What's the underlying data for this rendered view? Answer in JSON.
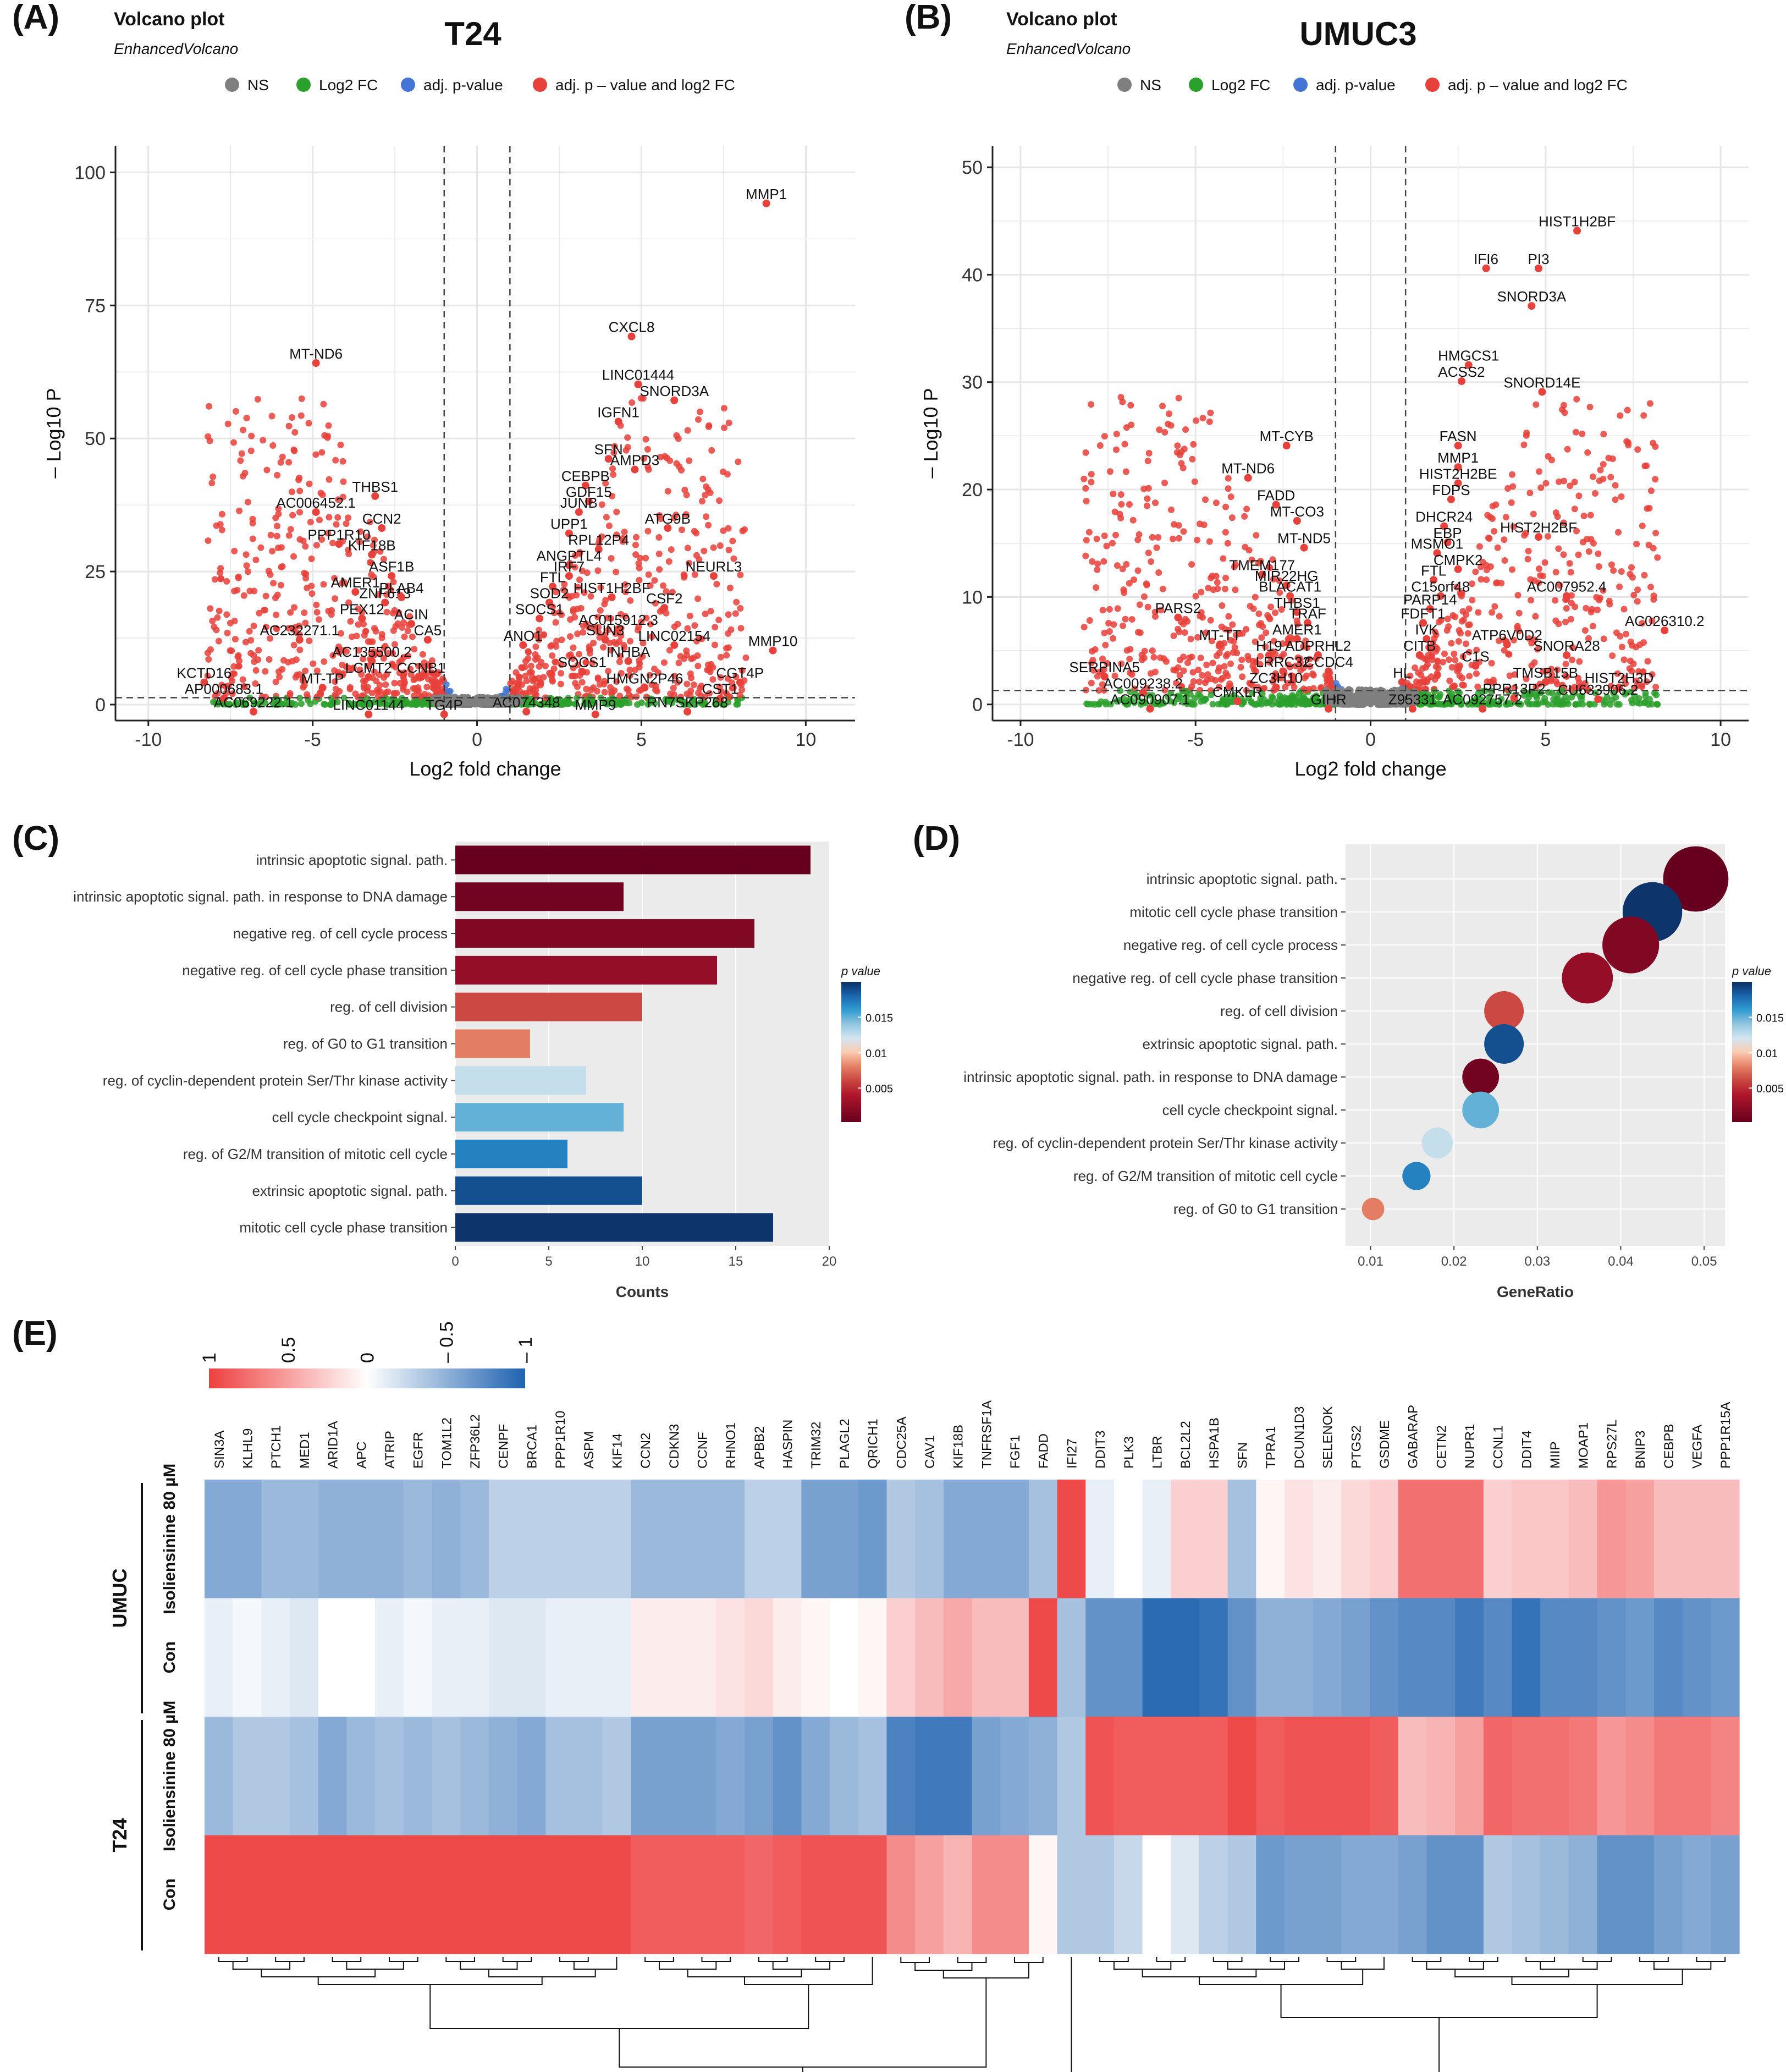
{
  "colors": {
    "ns": "#7f7f7f",
    "log2fc": "#2ca02c",
    "padj": "#4575d4",
    "both": "#e8403a",
    "panel": "#ebebeb",
    "grid": "#ffffff"
  },
  "chart_data": [
    {
      "id": "A",
      "type": "scatter",
      "panel_label": "(A)",
      "title": "Volcano plot",
      "subtitle": "EnhancedVolcano",
      "header": "T24",
      "legend": [
        "NS",
        "Log2 FC",
        "adj. p-value",
        "adj. p – value and log2 FC"
      ],
      "xlabel": "Log2 fold change",
      "ylabel": "– Log10 P",
      "xlim": [
        -11,
        11.5
      ],
      "ylim": [
        -3,
        105
      ],
      "xticks": [
        -10,
        -5,
        0,
        5,
        10
      ],
      "yticks": [
        0,
        25,
        50,
        75,
        100
      ],
      "fc_cutoff": [
        -1,
        1
      ],
      "p_cutoff": 1.3,
      "labels": [
        {
          "t": "MMP1",
          "x": 8.8,
          "y": 95
        },
        {
          "t": "CXCL8",
          "x": 4.7,
          "y": 70
        },
        {
          "t": "MT-ND6",
          "x": -4.9,
          "y": 65
        },
        {
          "t": "LINC01444",
          "x": 4.9,
          "y": 61
        },
        {
          "t": "SNORD3A",
          "x": 6.0,
          "y": 58
        },
        {
          "t": "IGFN1",
          "x": 4.3,
          "y": 54
        },
        {
          "t": "SFN",
          "x": 4.0,
          "y": 47
        },
        {
          "t": "AMPD3",
          "x": 4.8,
          "y": 45
        },
        {
          "t": "CEBPB",
          "x": 3.3,
          "y": 42
        },
        {
          "t": "THBS1",
          "x": -3.1,
          "y": 40
        },
        {
          "t": "GDF15",
          "x": 3.4,
          "y": 39
        },
        {
          "t": "AC006452.1",
          "x": -4.9,
          "y": 37
        },
        {
          "t": "JUNB",
          "x": 3.1,
          "y": 37
        },
        {
          "t": "ATG9B",
          "x": 5.8,
          "y": 34
        },
        {
          "t": "CCN2",
          "x": -2.9,
          "y": 34
        },
        {
          "t": "UPP1",
          "x": 2.8,
          "y": 33
        },
        {
          "t": "PPP1R10",
          "x": -4.2,
          "y": 31
        },
        {
          "t": "RPL12P4",
          "x": 3.7,
          "y": 30
        },
        {
          "t": "KIF18B",
          "x": -3.2,
          "y": 29
        },
        {
          "t": "ANGPTL4",
          "x": 2.8,
          "y": 27
        },
        {
          "t": "NEURL3",
          "x": 7.2,
          "y": 25
        },
        {
          "t": "ASF1B",
          "x": -2.6,
          "y": 25
        },
        {
          "t": "IRF7",
          "x": 2.8,
          "y": 25
        },
        {
          "t": "AMER1",
          "x": -3.7,
          "y": 22
        },
        {
          "t": "FTL",
          "x": 2.3,
          "y": 23
        },
        {
          "t": "HIST1H2BF",
          "x": 4.1,
          "y": 21
        },
        {
          "t": "CSF2",
          "x": 5.7,
          "y": 19
        },
        {
          "t": "ZNF613",
          "x": -2.8,
          "y": 20
        },
        {
          "t": "PLAB4",
          "x": -2.3,
          "y": 21
        },
        {
          "t": "SOD2",
          "x": 2.2,
          "y": 20
        },
        {
          "t": "PEX12",
          "x": -3.5,
          "y": 17
        },
        {
          "t": "ACIN",
          "x": -2.0,
          "y": 16
        },
        {
          "t": "SOCS1",
          "x": 1.9,
          "y": 17
        },
        {
          "t": "AC015912.3",
          "x": 4.3,
          "y": 15
        },
        {
          "t": "AC232271.1",
          "x": -5.4,
          "y": 13
        },
        {
          "t": "CA5",
          "x": -1.5,
          "y": 13
        },
        {
          "t": "ANO1",
          "x": 1.4,
          "y": 12
        },
        {
          "t": "SUN3",
          "x": 3.9,
          "y": 13
        },
        {
          "t": "LINC02154",
          "x": 6.0,
          "y": 12
        },
        {
          "t": "MMP10",
          "x": 9.0,
          "y": 11
        },
        {
          "t": "AC135500.2",
          "x": -3.2,
          "y": 9
        },
        {
          "t": "INHBA",
          "x": 4.6,
          "y": 9
        },
        {
          "t": "LCMT2",
          "x": -3.3,
          "y": 6
        },
        {
          "t": "CCNB1",
          "x": -1.7,
          "y": 6
        },
        {
          "t": "SOCS1",
          "x": 3.2,
          "y": 7
        },
        {
          "t": "KCTD16",
          "x": -8.3,
          "y": 5
        },
        {
          "t": "CGT4P",
          "x": 8.0,
          "y": 5
        },
        {
          "t": "HMGN2P46",
          "x": 5.1,
          "y": 4
        },
        {
          "t": "AP000683.1",
          "x": -7.7,
          "y": 2
        },
        {
          "t": "MT-TP",
          "x": -4.7,
          "y": 4
        },
        {
          "t": "CST1",
          "x": 7.4,
          "y": 2
        },
        {
          "t": "AC069222.1",
          "x": -6.8,
          "y": -0.5
        },
        {
          "t": "LINC01144",
          "x": -3.3,
          "y": -1
        },
        {
          "t": "TG4P",
          "x": -1.0,
          "y": -1
        },
        {
          "t": "AC074348",
          "x": 1.5,
          "y": -0.5
        },
        {
          "t": "MMP9",
          "x": 3.6,
          "y": -1
        },
        {
          "t": "RN7SKP268",
          "x": 6.4,
          "y": -0.5
        }
      ]
    },
    {
      "id": "B",
      "type": "scatter",
      "panel_label": "(B)",
      "title": "Volcano plot",
      "subtitle": "EnhancedVolcano",
      "header": "UMUC3",
      "legend": [
        "NS",
        "Log2 FC",
        "adj. p-value",
        "adj. p – value and log2 FC"
      ],
      "xlabel": "Log2 fold change",
      "ylabel": "– Log10 P",
      "xlim": [
        -10.8,
        10.8
      ],
      "ylim": [
        -1.5,
        52
      ],
      "xticks": [
        -10,
        -5,
        0,
        5,
        10
      ],
      "yticks": [
        0,
        10,
        20,
        30,
        40,
        50
      ],
      "fc_cutoff": [
        -1,
        1
      ],
      "p_cutoff": 1.3,
      "labels": [
        {
          "t": "HIST1H2BF",
          "x": 5.9,
          "y": 44.5
        },
        {
          "t": "IFI6",
          "x": 3.3,
          "y": 41
        },
        {
          "t": "PI3",
          "x": 4.8,
          "y": 41
        },
        {
          "t": "SNORD3A",
          "x": 4.6,
          "y": 37.5
        },
        {
          "t": "HMGCS1",
          "x": 2.8,
          "y": 32
        },
        {
          "t": "ACSS2",
          "x": 2.6,
          "y": 30.5
        },
        {
          "t": "SNORD14E",
          "x": 4.9,
          "y": 29.5
        },
        {
          "t": "MT-CYB",
          "x": -2.4,
          "y": 24.5
        },
        {
          "t": "FASN",
          "x": 2.5,
          "y": 24.5
        },
        {
          "t": "MMP1",
          "x": 2.5,
          "y": 22.5
        },
        {
          "t": "MT-ND6",
          "x": -3.5,
          "y": 21.5
        },
        {
          "t": "HIST2H2BE",
          "x": 2.5,
          "y": 21
        },
        {
          "t": "FDPS",
          "x": 2.3,
          "y": 19.5
        },
        {
          "t": "FADD",
          "x": -2.7,
          "y": 19
        },
        {
          "t": "MT-CO3",
          "x": -2.1,
          "y": 17.5
        },
        {
          "t": "DHCR24",
          "x": 2.1,
          "y": 17
        },
        {
          "t": "HIST2H2BF",
          "x": 4.8,
          "y": 16
        },
        {
          "t": "EBP",
          "x": 2.2,
          "y": 15.5
        },
        {
          "t": "MT-ND5",
          "x": -1.9,
          "y": 15
        },
        {
          "t": "MSMO1",
          "x": 1.9,
          "y": 14.5
        },
        {
          "t": "CMPK2",
          "x": 2.5,
          "y": 13
        },
        {
          "t": "TMEM177",
          "x": -3.1,
          "y": 12.5
        },
        {
          "t": "FTL",
          "x": 1.8,
          "y": 12
        },
        {
          "t": "MIR22HG",
          "x": -2.4,
          "y": 11.5
        },
        {
          "t": "C15orf48",
          "x": 2.0,
          "y": 10.5
        },
        {
          "t": "AC007952.4",
          "x": 5.6,
          "y": 10.5
        },
        {
          "t": "BLACAT1",
          "x": -2.3,
          "y": 10.5
        },
        {
          "t": "PARP14",
          "x": 1.7,
          "y": 9.3
        },
        {
          "t": "PARS2",
          "x": -5.5,
          "y": 8.5
        },
        {
          "t": "THBS1",
          "x": -2.1,
          "y": 9
        },
        {
          "t": "TRAF",
          "x": -1.8,
          "y": 8
        },
        {
          "t": "FDFT1",
          "x": 1.5,
          "y": 8
        },
        {
          "t": "AC026310.2",
          "x": 8.4,
          "y": 7.3
        },
        {
          "t": "MT-TT",
          "x": -4.3,
          "y": 6
        },
        {
          "t": "AMER1",
          "x": -2.1,
          "y": 6.5
        },
        {
          "t": "IVK",
          "x": 1.6,
          "y": 6.5
        },
        {
          "t": "ATP6V0D2",
          "x": 3.9,
          "y": 6
        },
        {
          "t": "H19",
          "x": -2.9,
          "y": 5
        },
        {
          "t": "ADPRHL2",
          "x": -1.5,
          "y": 5
        },
        {
          "t": "CITB",
          "x": 1.4,
          "y": 5
        },
        {
          "t": "SNORA28",
          "x": 5.6,
          "y": 5
        },
        {
          "t": "LRRC32",
          "x": -2.5,
          "y": 3.5
        },
        {
          "t": "CCDC4",
          "x": -1.2,
          "y": 3.5
        },
        {
          "t": "C1S",
          "x": 3.0,
          "y": 4
        },
        {
          "t": "SERPINA5",
          "x": -7.6,
          "y": 3
        },
        {
          "t": "ZC3H10",
          "x": -2.7,
          "y": 2
        },
        {
          "t": "HL",
          "x": 0.9,
          "y": 2.5
        },
        {
          "t": "TMSB15B",
          "x": 5.0,
          "y": 2.5
        },
        {
          "t": "AC009238.2",
          "x": -6.5,
          "y": 1.5
        },
        {
          "t": "PPR13P2",
          "x": 4.1,
          "y": 1
        },
        {
          "t": "HIST2H3D",
          "x": 7.1,
          "y": 2
        },
        {
          "t": "AC090907.1",
          "x": -6.3,
          "y": 0
        },
        {
          "t": "CMKLR",
          "x": -3.8,
          "y": 0.7
        },
        {
          "t": "GIHR",
          "x": -1.2,
          "y": 0
        },
        {
          "t": "Z95331",
          "x": 1.2,
          "y": 0
        },
        {
          "t": "AC092757.2",
          "x": 3.2,
          "y": 0
        },
        {
          "t": "CU633906.2",
          "x": 6.5,
          "y": 0.9
        }
      ]
    },
    {
      "id": "C",
      "type": "bar",
      "panel_label": "(C)",
      "categories": [
        "intrinsic apoptotic signal. path.",
        "intrinsic apoptotic signal. path. in response to DNA damage",
        "negative reg. of cell cycle process",
        "negative reg. of cell cycle phase transition",
        "reg. of cell division",
        "reg. of G0 to G1 transition",
        "reg. of cyclin-dependent protein Ser/Thr kinase activity",
        "cell cycle checkpoint signal.",
        "reg. of G2/M transition of mitotic cell cycle",
        "extrinsic apoptotic signal. path.",
        "mitotic cell cycle phase transition"
      ],
      "values": [
        19,
        9,
        16,
        14,
        10,
        4,
        7,
        9,
        6,
        10,
        17
      ],
      "pvalues": [
        0.0002,
        0.0008,
        0.0015,
        0.0025,
        0.0062,
        0.008,
        0.0125,
        0.015,
        0.017,
        0.0188,
        0.0198
      ],
      "xlabel": "Counts",
      "xlim": [
        0,
        20
      ],
      "xticks": [
        0,
        5,
        10,
        15,
        20
      ],
      "legend_title": "p value",
      "legend_ticks": [
        "0.015",
        "0.01",
        "0.005"
      ],
      "legend_tick_values": [
        0.015,
        0.01,
        0.005
      ],
      "legend_range": [
        0.0002,
        0.02
      ]
    },
    {
      "id": "D",
      "type": "scatter",
      "panel_label": "(D)",
      "categories": [
        "intrinsic apoptotic signal. path.",
        "mitotic cell cycle phase transition",
        "negative reg. of cell cycle process",
        "negative reg. of cell cycle phase transition",
        "reg. of cell division",
        "extrinsic apoptotic signal. path.",
        "intrinsic apoptotic signal. path. in response to DNA damage",
        "cell cycle checkpoint signal.",
        "reg. of cyclin-dependent protein Ser/Thr kinase activity",
        "reg. of G2/M transition of mitotic cell cycle",
        "reg. of G0 to G1 transition"
      ],
      "gene_ratio": [
        0.049,
        0.0438,
        0.0412,
        0.036,
        0.026,
        0.026,
        0.0232,
        0.0232,
        0.018,
        0.0155,
        0.0103
      ],
      "counts": [
        19,
        17,
        16,
        14,
        10,
        10,
        9,
        9,
        7,
        6,
        4
      ],
      "pvalues": [
        0.0002,
        0.0198,
        0.0015,
        0.0025,
        0.0062,
        0.0188,
        0.0008,
        0.015,
        0.0125,
        0.017,
        0.008
      ],
      "xlabel": "GeneRatio",
      "xlim": [
        0.007,
        0.0525
      ],
      "xticks": [
        0.01,
        0.02,
        0.03,
        0.04,
        0.05
      ],
      "xtick_labels": [
        "0.01",
        "0.02",
        "0.03",
        "0.04",
        "0.05"
      ],
      "legend_title": "p value",
      "legend_ticks": [
        "0.015",
        "0.01",
        "0.005"
      ],
      "legend_tick_values": [
        0.015,
        0.01,
        0.005
      ],
      "legend_range": [
        0.0002,
        0.02
      ]
    },
    {
      "id": "E",
      "type": "heatmap",
      "panel_label": "(E)",
      "scale_ticks": [
        "1",
        "0.5",
        "0",
        "– 0.5",
        "– 1"
      ],
      "scale_tick_values": [
        1,
        0.5,
        0,
        -0.5,
        -1
      ],
      "genes": [
        "SIN3A",
        "KLHL9",
        "PTCH1",
        "MED1",
        "ARID1A",
        "APC",
        "ATRIP",
        "EGFR",
        "TOM1L2",
        "ZFP36L2",
        "CENPF",
        "BRCA1",
        "PPP1R10",
        "ASPM",
        "KIF14",
        "CCN2",
        "CDKN3",
        "CCNF",
        "RHNO1",
        "APBB2",
        "HASPIN",
        "TRIM32",
        "PLAGL2",
        "QRICH1",
        "CDC25A",
        "CAV1",
        "KIF18B",
        "TNFRSF1A",
        "FGF1",
        "FADD",
        "IFI27",
        "DDIT3",
        "PLK3",
        "LTBR",
        "BCL2L2",
        "HSPA1B",
        "SFN",
        "TPRA1",
        "DCUN1D3",
        "SELENOK",
        "PTGS2",
        "GSDME",
        "GABARAP",
        "CETN2",
        "NUPR1",
        "CCNL1",
        "DDIT4",
        "MIIP",
        "MOAP1",
        "RPS27L",
        "BNIP3",
        "CEBPB",
        "VEGFA",
        "PPP1R15A"
      ],
      "groups": [
        {
          "name": "UMUC",
          "rows": [
            "Isoliensinine 80 µM",
            "Con"
          ]
        },
        {
          "name": "T24",
          "rows": [
            "Isoliensinine 80 µM",
            "Con"
          ]
        }
      ],
      "values": [
        [
          -0.55,
          -0.55,
          -0.45,
          -0.45,
          -0.5,
          -0.5,
          -0.5,
          -0.45,
          -0.5,
          -0.45,
          -0.3,
          -0.3,
          -0.3,
          -0.3,
          -0.3,
          -0.45,
          -0.45,
          -0.45,
          -0.45,
          -0.3,
          -0.3,
          -0.6,
          -0.6,
          -0.65,
          -0.35,
          -0.4,
          -0.55,
          -0.55,
          -0.55,
          -0.4,
          0.95,
          -0.1,
          0.0,
          -0.1,
          0.25,
          0.25,
          -0.4,
          0.05,
          0.15,
          0.1,
          0.2,
          0.25,
          0.75,
          0.75,
          0.75,
          0.25,
          0.3,
          0.3,
          0.35,
          0.55,
          0.5,
          0.35,
          0.35,
          0.35
        ],
        [
          -0.1,
          -0.05,
          -0.1,
          -0.15,
          0.0,
          0.0,
          -0.1,
          -0.05,
          -0.1,
          -0.1,
          -0.15,
          -0.15,
          -0.1,
          -0.1,
          -0.1,
          0.1,
          0.1,
          0.1,
          0.15,
          0.2,
          0.1,
          0.05,
          0.0,
          0.05,
          0.25,
          0.35,
          0.45,
          0.35,
          0.35,
          0.95,
          -0.4,
          -0.7,
          -0.7,
          -0.95,
          -0.95,
          -0.9,
          -0.7,
          -0.5,
          -0.5,
          -0.55,
          -0.6,
          -0.7,
          -0.75,
          -0.75,
          -0.85,
          -0.75,
          -0.9,
          -0.75,
          -0.75,
          -0.7,
          -0.65,
          -0.75,
          -0.7,
          -0.65
        ],
        [
          -0.45,
          -0.35,
          -0.35,
          -0.4,
          -0.55,
          -0.45,
          -0.4,
          -0.45,
          -0.4,
          -0.45,
          -0.5,
          -0.55,
          -0.4,
          -0.4,
          -0.35,
          -0.6,
          -0.6,
          -0.6,
          -0.55,
          -0.6,
          -0.7,
          -0.55,
          -0.45,
          -0.4,
          -0.8,
          -0.85,
          -0.85,
          -0.6,
          -0.55,
          -0.5,
          -0.35,
          0.9,
          0.85,
          0.85,
          0.85,
          0.85,
          0.95,
          0.85,
          0.9,
          0.9,
          0.9,
          0.85,
          0.35,
          0.4,
          0.5,
          0.8,
          0.75,
          0.75,
          0.7,
          0.55,
          0.6,
          0.7,
          0.7,
          0.65
        ],
        [
          0.95,
          0.95,
          0.95,
          0.95,
          0.95,
          0.95,
          0.95,
          0.95,
          0.95,
          0.95,
          0.95,
          0.95,
          0.95,
          0.95,
          0.95,
          0.85,
          0.85,
          0.85,
          0.85,
          0.8,
          0.85,
          0.9,
          0.9,
          0.9,
          0.6,
          0.5,
          0.4,
          0.6,
          0.6,
          0.05,
          -0.35,
          -0.35,
          -0.25,
          0.0,
          -0.15,
          -0.3,
          -0.35,
          -0.65,
          -0.6,
          -0.6,
          -0.55,
          -0.55,
          -0.6,
          -0.7,
          -0.7,
          -0.35,
          -0.4,
          -0.45,
          -0.5,
          -0.7,
          -0.7,
          -0.6,
          -0.55,
          -0.6
        ]
      ]
    }
  ]
}
